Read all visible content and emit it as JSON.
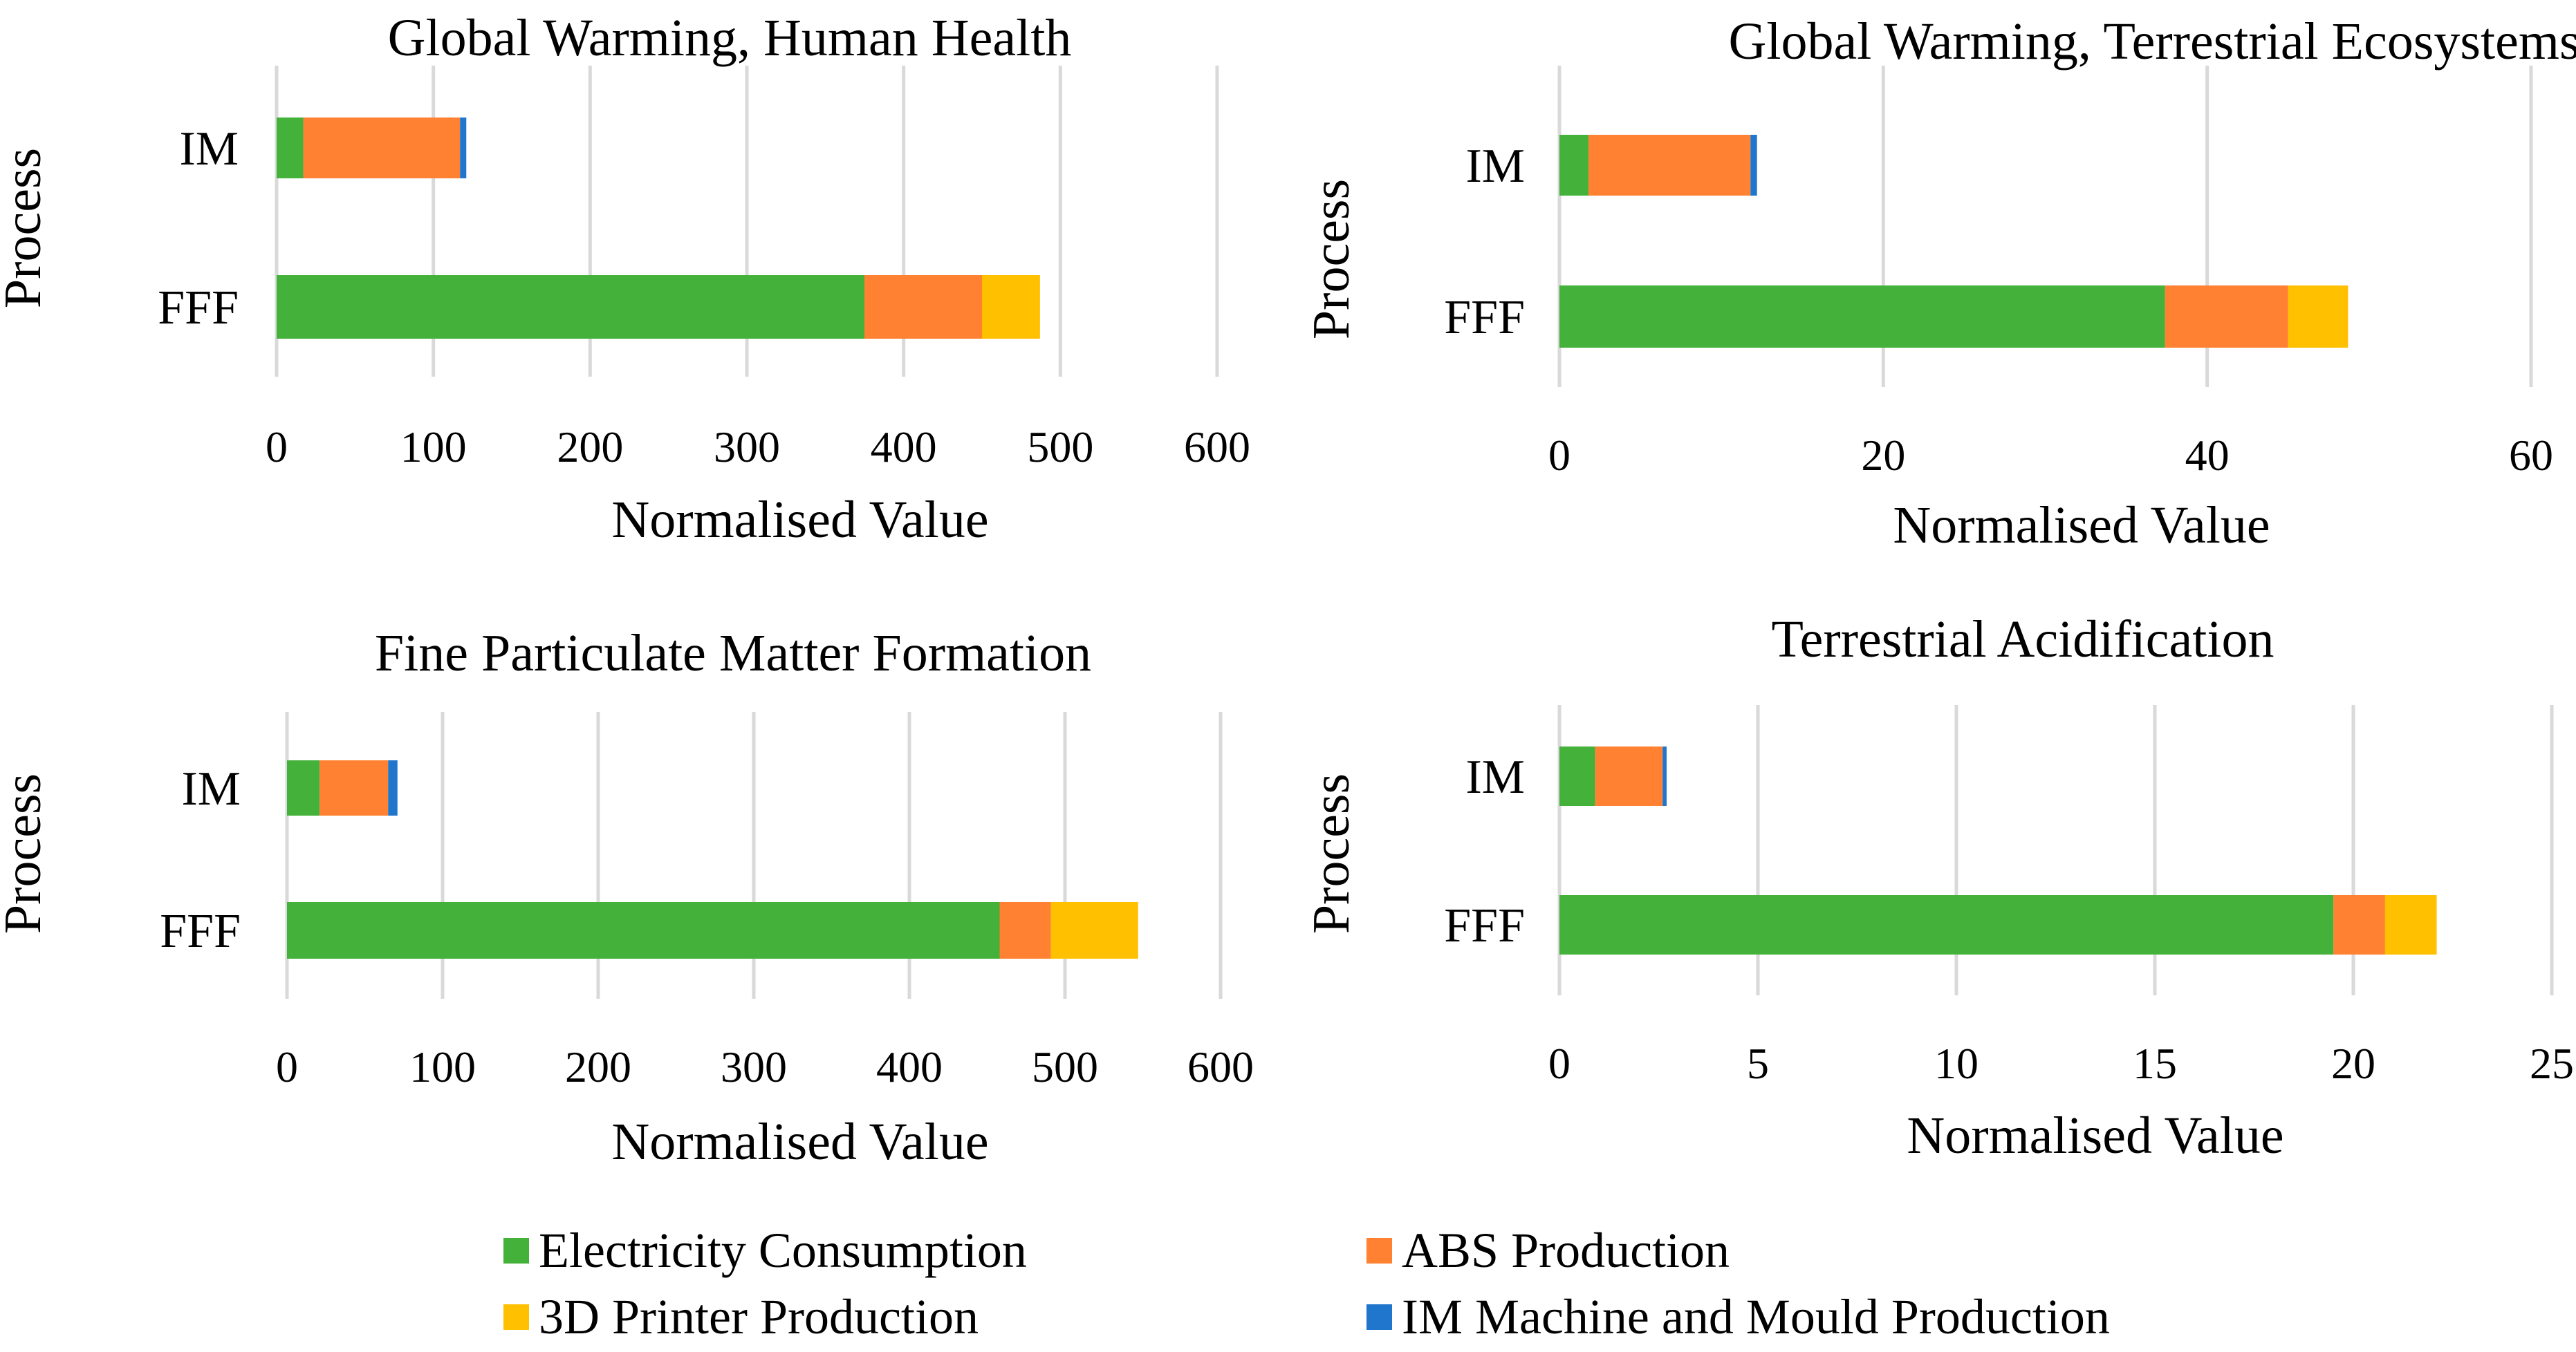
{
  "colors": {
    "electricity": "#43B13A",
    "abs": "#FF8131",
    "printer": "#FFC000",
    "im_machine": "#1F76CC",
    "gridline": "#D9D9D9",
    "text": "#000000"
  },
  "legend": [
    {
      "key": "electricity",
      "label": "Electricity Consumption"
    },
    {
      "key": "abs",
      "label": "ABS Production"
    },
    {
      "key": "printer",
      "label": "3D Printer Production"
    },
    {
      "key": "im_machine",
      "label": "IM Machine and Mould Production"
    }
  ],
  "chart_data": [
    {
      "type": "bar",
      "orientation": "horizontal",
      "stacked": true,
      "title": "Global Warming, Human Health",
      "xlabel": "Normalised Value",
      "ylabel": "Process",
      "xlim": [
        0,
        600
      ],
      "xticks": [
        0,
        100,
        200,
        300,
        400,
        500,
        600
      ],
      "categories": [
        "IM",
        "FFF"
      ],
      "series": [
        {
          "key": "electricity",
          "name": "Electricity Consumption",
          "values": [
            17,
            375
          ]
        },
        {
          "key": "abs",
          "name": "ABS Production",
          "values": [
            100,
            75
          ]
        },
        {
          "key": "printer",
          "name": "3D Printer Production",
          "values": [
            0,
            37
          ]
        },
        {
          "key": "im_machine",
          "name": "IM Machine and Mould Production",
          "values": [
            4,
            0
          ]
        }
      ],
      "grid": true
    },
    {
      "type": "bar",
      "orientation": "horizontal",
      "stacked": true,
      "title": "Global Warming, Terrestrial Ecosystems",
      "xlabel": "Normalised Value",
      "ylabel": "Process",
      "xlim": [
        0,
        60
      ],
      "xticks": [
        0,
        20,
        40,
        60
      ],
      "categories": [
        "IM",
        "FFF"
      ],
      "series": [
        {
          "key": "electricity",
          "name": "Electricity Consumption",
          "values": [
            1.8,
            37.4
          ]
        },
        {
          "key": "abs",
          "name": "ABS Production",
          "values": [
            10.0,
            7.6
          ]
        },
        {
          "key": "printer",
          "name": "3D Printer Production",
          "values": [
            0,
            3.7
          ]
        },
        {
          "key": "im_machine",
          "name": "IM Machine and Mould Production",
          "values": [
            0.4,
            0
          ]
        }
      ],
      "grid": true
    },
    {
      "type": "bar",
      "orientation": "horizontal",
      "stacked": true,
      "title": "Fine Particulate Matter Formation",
      "xlabel": "Normalised Value",
      "ylabel": "Process",
      "xlim": [
        0,
        600
      ],
      "xticks": [
        0,
        100,
        200,
        300,
        400,
        500,
        600
      ],
      "categories": [
        "IM",
        "FFF"
      ],
      "series": [
        {
          "key": "electricity",
          "name": "Electricity Consumption",
          "values": [
            21,
            458
          ]
        },
        {
          "key": "abs",
          "name": "ABS Production",
          "values": [
            44,
            33
          ]
        },
        {
          "key": "printer",
          "name": "3D Printer Production",
          "values": [
            0,
            56
          ]
        },
        {
          "key": "im_machine",
          "name": "IM Machine and Mould Production",
          "values": [
            6,
            0
          ]
        }
      ],
      "grid": true
    },
    {
      "type": "bar",
      "orientation": "horizontal",
      "stacked": true,
      "title": "Terrestrial Acidification",
      "xlabel": "Normalised Value",
      "ylabel": "Process",
      "xlim": [
        0,
        25
      ],
      "xticks": [
        0,
        5,
        10,
        15,
        20,
        25
      ],
      "categories": [
        "IM",
        "FFF"
      ],
      "series": [
        {
          "key": "electricity",
          "name": "Electricity Consumption",
          "values": [
            0.9,
            19.5
          ]
        },
        {
          "key": "abs",
          "name": "ABS Production",
          "values": [
            1.7,
            1.3
          ]
        },
        {
          "key": "printer",
          "name": "3D Printer Production",
          "values": [
            0,
            1.3
          ]
        },
        {
          "key": "im_machine",
          "name": "IM Machine and Mould Production",
          "values": [
            0.1,
            0
          ]
        }
      ],
      "grid": true
    }
  ]
}
